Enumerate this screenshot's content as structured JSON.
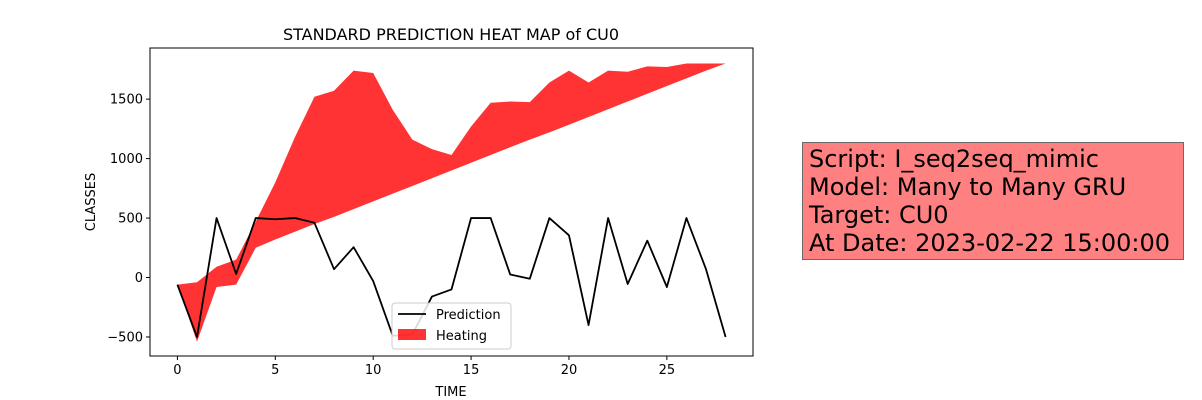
{
  "chart_data": {
    "type": "line",
    "title": "STANDARD PREDICTION HEAT MAP of CU0",
    "xlabel": "TIME",
    "ylabel": "CLASSES",
    "xlim": [
      -1.4,
      29.4
    ],
    "ylim": [
      -660,
      1930
    ],
    "xticks": [
      0,
      5,
      10,
      15,
      20,
      25
    ],
    "yticks": [
      -500,
      0,
      500,
      1000,
      1500
    ],
    "grid": false,
    "legend_position": "lower-center",
    "series": [
      {
        "name": "Prediction",
        "type": "line",
        "color": "#000000",
        "x": [
          0,
          1,
          2,
          3,
          4,
          5,
          6,
          7,
          8,
          9,
          10,
          11,
          12,
          13,
          14,
          15,
          16,
          17,
          18,
          19,
          20,
          21,
          22,
          23,
          24,
          25,
          26,
          27,
          28
        ],
        "y": [
          -60,
          -500,
          500,
          30,
          500,
          490,
          500,
          460,
          70,
          255,
          -30,
          -490,
          -480,
          -160,
          -100,
          500,
          500,
          25,
          -10,
          500,
          355,
          -400,
          500,
          -55,
          310,
          -80,
          500,
          70,
          -500
        ]
      },
      {
        "name": "Heating",
        "type": "area",
        "color": "#ff0000",
        "opacity": 0.8,
        "x": [
          0,
          1,
          2,
          3,
          4,
          5,
          6,
          7,
          8,
          9,
          10,
          11,
          12,
          13,
          14,
          15,
          16,
          17,
          18,
          19,
          20,
          21,
          22,
          23,
          24,
          25,
          26,
          27,
          28
        ],
        "upper": [
          -60,
          -40,
          90,
          150,
          470,
          800,
          1180,
          1520,
          1570,
          1740,
          1720,
          1410,
          1160,
          1080,
          1030,
          1270,
          1470,
          1480,
          1475,
          1640,
          1740,
          1640,
          1740,
          1730,
          1775,
          1770,
          1800,
          1800,
          1800
        ],
        "lower": [
          -60,
          -540,
          -80,
          -60,
          250,
          320,
          385,
          450,
          510,
          575,
          640,
          705,
          770,
          835,
          900,
          965,
          1030,
          1095,
          1160,
          1220,
          1285,
          1350,
          1415,
          1480,
          1545,
          1610,
          1675,
          1740,
          1800
        ]
      }
    ]
  },
  "info_box": {
    "lines": [
      "Script: I_seq2seq_mimic",
      "Model: Many to Many GRU",
      "Target: CU0",
      "At Date: 2023-02-22 15:00:00"
    ],
    "background": "#ff8080"
  }
}
